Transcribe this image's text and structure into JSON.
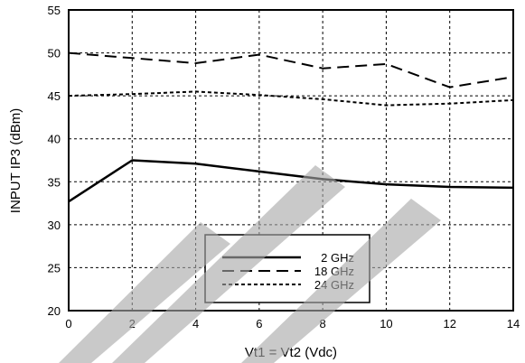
{
  "chart_data": {
    "type": "line",
    "xlabel": "Vt1 = Vt2 (Vdc)",
    "ylabel": "INPUT IP3 (dBm)",
    "xlim": [
      0,
      14
    ],
    "ylim": [
      20,
      55
    ],
    "x_ticks": [
      0,
      2,
      4,
      6,
      8,
      10,
      12,
      14
    ],
    "y_ticks": [
      20,
      25,
      30,
      35,
      40,
      45,
      50,
      55
    ],
    "grid": true,
    "legend_position": "bottom-center",
    "series": [
      {
        "name": "2 GHz",
        "style": "solid",
        "color": "#000000",
        "x": [
          0,
          2,
          4,
          6,
          8,
          10,
          12,
          14
        ],
        "y": [
          32.7,
          37.5,
          37.1,
          36.2,
          35.3,
          34.7,
          34.4,
          34.3
        ]
      },
      {
        "name": "18 GHz",
        "style": "dashed",
        "color": "#000000",
        "x": [
          0,
          2,
          4,
          6,
          8,
          10,
          12,
          14
        ],
        "y": [
          50.0,
          49.4,
          48.8,
          49.8,
          48.2,
          48.7,
          46.0,
          47.2
        ]
      },
      {
        "name": "24 GHz",
        "style": "dotted",
        "color": "#000000",
        "x": [
          0,
          2,
          4,
          6,
          8,
          10,
          12,
          14
        ],
        "y": [
          45.0,
          45.2,
          45.5,
          45.1,
          44.6,
          43.9,
          44.1,
          44.5
        ]
      }
    ]
  },
  "watermark": {
    "text": "",
    "color": "#000000"
  }
}
